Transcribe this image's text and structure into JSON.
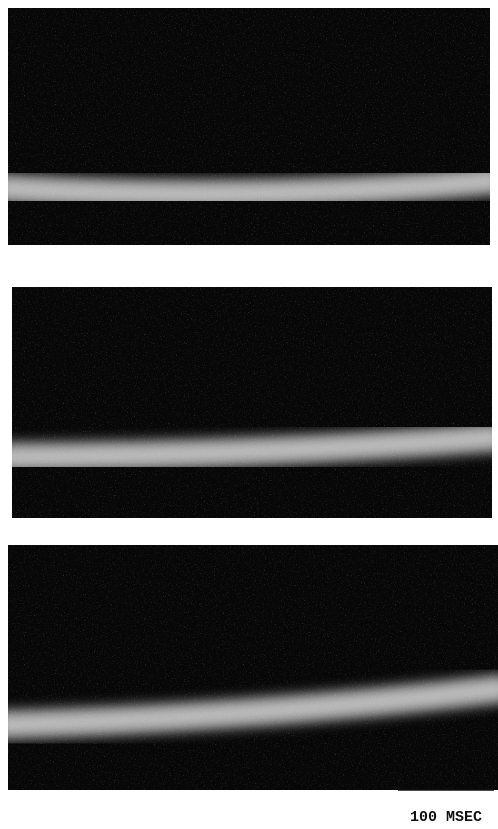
{
  "scale_bar": {
    "label": "100 MSEC"
  }
}
